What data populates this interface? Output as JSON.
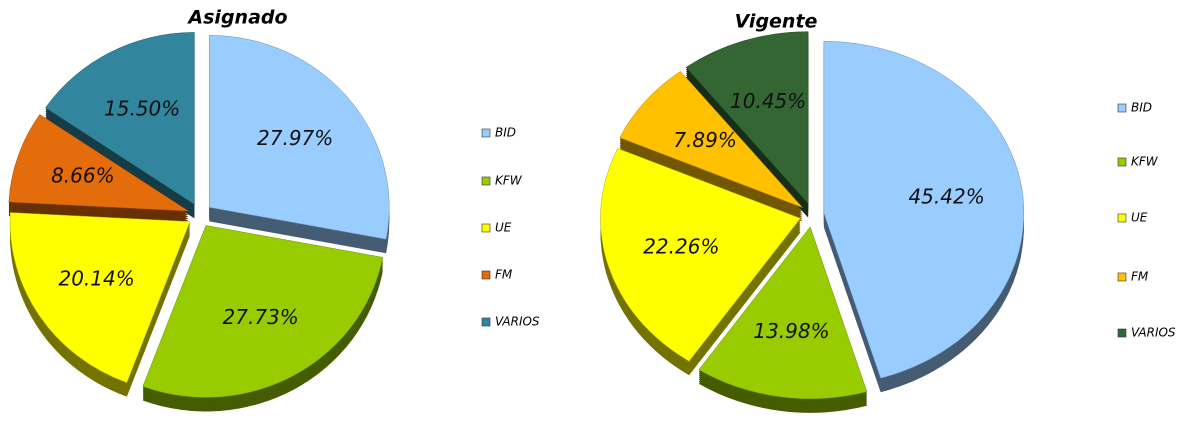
{
  "chart_data": [
    {
      "type": "pie",
      "title": "Asignado",
      "categories": [
        "BID",
        "KFW",
        "UE",
        "FM",
        "VARIOS"
      ],
      "values": [
        27.97,
        27.73,
        20.14,
        8.66,
        15.5
      ],
      "value_labels": [
        "27.97%",
        "27.73%",
        "20.14%",
        "8.66%",
        "15.50%"
      ],
      "colors": [
        "#99ccff",
        "#99cc00",
        "#ffff00",
        "#e46c0a",
        "#31859c"
      ],
      "legend": "right"
    },
    {
      "type": "pie",
      "title": "Vigente",
      "categories": [
        "BID",
        "KFW",
        "UE",
        "FM",
        "VARIOS"
      ],
      "values": [
        45.42,
        13.98,
        22.26,
        7.89,
        10.45
      ],
      "value_labels": [
        "45.42%",
        "13.98%",
        "22.26%",
        "7.89%",
        "10.45%"
      ],
      "colors": [
        "#99ccff",
        "#99cc00",
        "#ffff00",
        "#ffc000",
        "#336633"
      ],
      "legend": "right"
    }
  ]
}
